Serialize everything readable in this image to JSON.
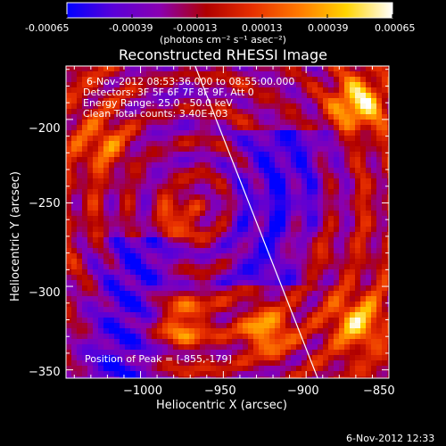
{
  "colorbar": {
    "tick_labels": [
      "-0.00065",
      "-0.00039",
      "-0.00013",
      "0.00013",
      "0.00039",
      "0.00065"
    ],
    "units_label": "(photons cm⁻² s⁻¹ asec⁻²)",
    "stops": [
      "#0000ff",
      "#5a00d8",
      "#8a00b0",
      "#b00000",
      "#e83000",
      "#ff7a00",
      "#ffd400",
      "#ffffff"
    ]
  },
  "chart_data": {
    "type": "heatmap",
    "title": "Reconstructed RHESSI Image",
    "xlabel": "Heliocentric X (arcsec)",
    "ylabel": "Heliocentric Y (arcsec)",
    "xlim": [
      -1045,
      -850
    ],
    "ylim": [
      -355,
      -168
    ],
    "x_ticks": [
      -1000,
      -950,
      -900,
      -850
    ],
    "y_ticks": [
      -200,
      -250,
      -300,
      -350
    ],
    "x_tick_labels": [
      "−1000",
      "−950",
      "−900",
      "−850"
    ],
    "y_tick_labels": [
      "−200",
      "−250",
      "−300",
      "−350"
    ],
    "limb_line": [
      [
        -967,
        -168
      ],
      [
        -893,
        -355
      ]
    ],
    "peak": [
      -855,
      -179
    ],
    "annotations": [
      "6-Nov-2012 08:53:36.000 to 08:55:00.000",
      "Detectors: 3F 5F 6F 7F 8F 9F, Att 0",
      "Energy Range: 25.0 - 50.0 keV",
      "Clean    Total counts: 3.40E+03"
    ],
    "peak_label": "Position of Peak = [-855,-179]",
    "grid": false
  },
  "footer_timestamp": "6-Nov-2012 12:33"
}
